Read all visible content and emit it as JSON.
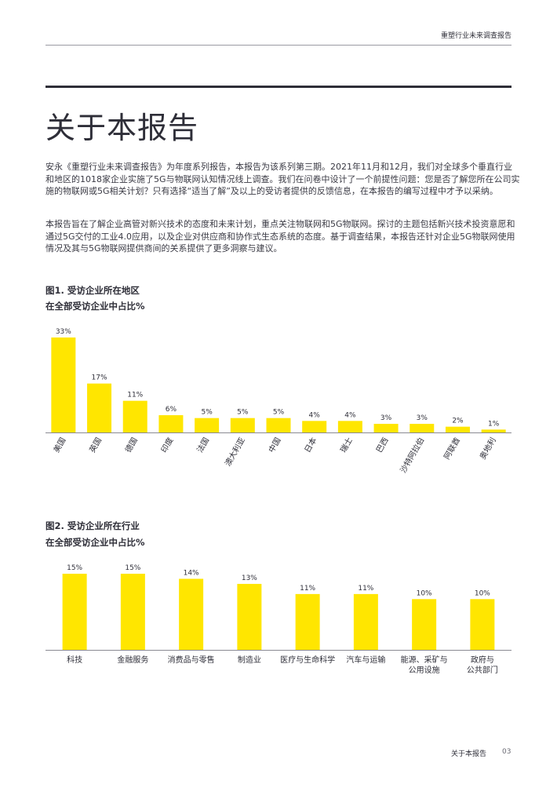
{
  "header": {
    "title": "重塑行业未来调查报告"
  },
  "page_title": "关于本报告",
  "paragraphs": [
    "安永《重塑行业未来调查报告》为年度系列报告，本报告为该系列第三期。2021年11月和12月，我们对全球多个垂直行业和地区的1018家企业实施了5G与物联网认知情况线上调查。我们在问卷中设计了一个前提性问题：您是否了解您所在公司实施的物联网或5G相关计划？只有选择“适当了解”及以上的受访者提供的反馈信息，在本报告的编写过程中才予以采纳。",
    "本报告旨在了解企业高管对新兴技术的态度和未来计划，重点关注物联网和5G物联网。探讨的主题包括新兴技术投资意愿和通过5G交付的工业4.0应用，以及企业对供应商和协作式生态系统的态度。基于调查结果，本报告还针对企业5G物联网使用情况及其与5G物联网提供商间的关系提供了更多洞察与建议。"
  ],
  "figures": [
    {
      "title": "图1. 受访企业所在地区",
      "subtitle": "在全部受访企业中占比%"
    },
    {
      "title": "图2. 受访企业所在行业",
      "subtitle": "在全部受访企业中占比%"
    }
  ],
  "chart_data": [
    {
      "type": "bar",
      "categories": [
        "美国",
        "英国",
        "德国",
        "印度",
        "法国",
        "澳大利亚",
        "中国",
        "日本",
        "瑞士",
        "巴西",
        "沙特阿拉伯",
        "阿联酋",
        "奥地利"
      ],
      "values": [
        33,
        17,
        11,
        6,
        5,
        5,
        5,
        4,
        4,
        3,
        3,
        2,
        1
      ],
      "data_labels": [
        "33%",
        "17%",
        "11%",
        "6%",
        "5%",
        "5%",
        "5%",
        "4%",
        "4%",
        "3%",
        "3%",
        "2%",
        "1%"
      ],
      "ylim": [
        0,
        33
      ],
      "bar_color": "#ffe600",
      "grid": false
    },
    {
      "type": "bar",
      "categories": [
        "科技",
        "金融服务",
        "消费品与零售",
        "制造业",
        "医疗与生命科学",
        "汽车与运输",
        "能源、采矿与\n公用设施",
        "政府与\n公共部门"
      ],
      "values": [
        15,
        15,
        14,
        13,
        11,
        11,
        10,
        10
      ],
      "data_labels": [
        "15%",
        "15%",
        "14%",
        "13%",
        "11%",
        "11%",
        "10%",
        "10%"
      ],
      "ylim": [
        0,
        15
      ],
      "bar_color": "#ffe600",
      "grid": false
    }
  ],
  "footer": {
    "label": "关于本报告",
    "page_number": "03"
  }
}
